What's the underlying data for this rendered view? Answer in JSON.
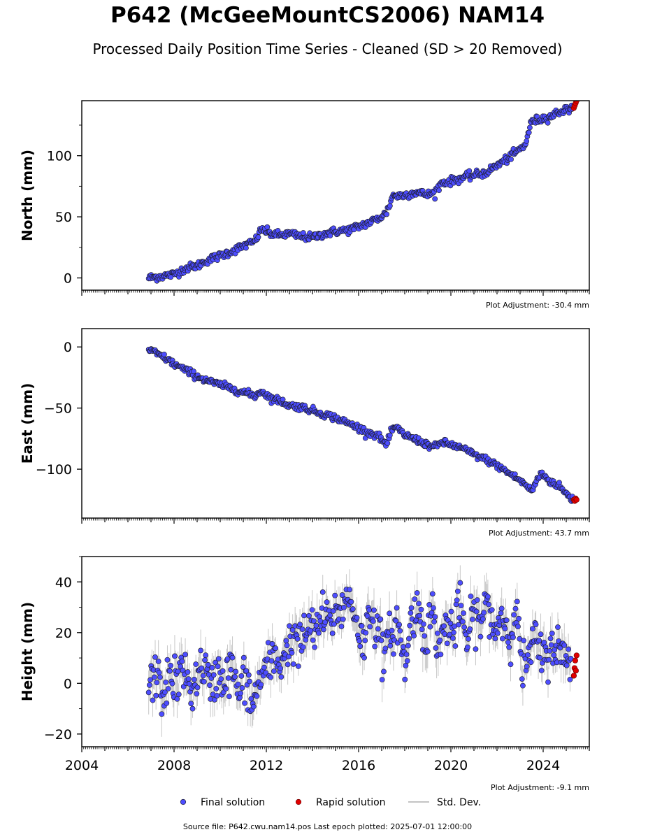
{
  "title": "P642 (McGeeMountCS2006) NAM14",
  "subtitle": "Processed Daily Position Time Series - Cleaned (SD > 20 Removed)",
  "source_text": "Source file: P642.cwu.nam14.pos  Last epoch plotted: 2025-07-01 12:00:00",
  "legend": {
    "final_label": "Final solution",
    "rapid_label": "Rapid solution",
    "sd_label": "Std. Dev."
  },
  "colors": {
    "final": "#4d4dff",
    "rapid": "#e00000",
    "marker_edge": "#1a1a1a",
    "std_dev": "#b0b0b0",
    "axis": "#000000"
  },
  "chart_data": [
    {
      "type": "scatter",
      "ylabel": "North (mm)",
      "xlabel": "",
      "xlim": [
        2004,
        2026
      ],
      "ylim": [
        -10,
        145
      ],
      "yticks": [
        0,
        50,
        100
      ],
      "ytick_labels": [
        "0",
        "50",
        "100"
      ],
      "adjustment": "Plot Adjustment: -30.4 mm",
      "series": [
        {
          "name": "Final solution",
          "x": [
            2006.9,
            2007.3,
            2007.7,
            2008.0,
            2008.5,
            2009.0,
            2009.5,
            2010.0,
            2010.5,
            2011.0,
            2011.5,
            2011.8,
            2012.2,
            2012.6,
            2013.0,
            2013.5,
            2014.0,
            2014.5,
            2015.0,
            2015.5,
            2016.0,
            2016.4,
            2016.8,
            2017.2,
            2017.5,
            2017.7,
            2018.0,
            2018.5,
            2019.0,
            2019.3,
            2019.6,
            2020.0,
            2020.5,
            2021.0,
            2021.5,
            2022.0,
            2022.5,
            2022.9,
            2023.2,
            2023.5,
            2023.9,
            2024.3,
            2024.7,
            2025.1,
            2025.3
          ],
          "y": [
            0,
            1,
            2,
            3,
            8,
            10,
            15,
            18,
            22,
            26,
            30,
            40,
            36,
            35,
            36,
            34,
            33,
            36,
            38,
            39,
            42,
            45,
            48,
            53,
            68,
            67,
            68,
            70,
            68,
            70,
            78,
            79,
            82,
            84,
            86,
            92,
            98,
            104,
            108,
            128,
            130,
            132,
            136,
            138,
            140
          ]
        },
        {
          "name": "Rapid solution",
          "x": [
            2025.33,
            2025.37,
            2025.41,
            2025.45
          ],
          "y": [
            139,
            141,
            143,
            145
          ]
        }
      ]
    },
    {
      "type": "scatter",
      "ylabel": "East (mm)",
      "xlabel": "",
      "xlim": [
        2004,
        2026
      ],
      "ylim": [
        -140,
        15
      ],
      "yticks": [
        0,
        -50,
        -100
      ],
      "ytick_labels": [
        "0",
        "−50",
        "−100"
      ],
      "adjustment": "Plot Adjustment: 43.7 mm",
      "series": [
        {
          "name": "Final solution",
          "x": [
            2006.9,
            2007.3,
            2007.7,
            2008.0,
            2008.5,
            2009.0,
            2009.5,
            2010.0,
            2010.5,
            2011.0,
            2011.5,
            2011.8,
            2012.2,
            2012.6,
            2013.0,
            2013.5,
            2014.0,
            2014.5,
            2015.0,
            2015.5,
            2016.0,
            2016.4,
            2016.8,
            2017.2,
            2017.5,
            2017.7,
            2018.0,
            2018.5,
            2019.0,
            2019.3,
            2019.6,
            2020.0,
            2020.5,
            2021.0,
            2021.5,
            2022.0,
            2022.5,
            2022.9,
            2023.2,
            2023.5,
            2023.9,
            2024.3,
            2024.7,
            2025.1,
            2025.3
          ],
          "y": [
            -2,
            -6,
            -10,
            -14,
            -19,
            -24,
            -28,
            -31,
            -34,
            -37,
            -40,
            -36,
            -42,
            -44,
            -48,
            -49,
            -52,
            -55,
            -58,
            -62,
            -66,
            -70,
            -72,
            -80,
            -66,
            -67,
            -72,
            -76,
            -80,
            -82,
            -78,
            -80,
            -83,
            -88,
            -92,
            -97,
            -103,
            -108,
            -112,
            -118,
            -103,
            -110,
            -114,
            -122,
            -125
          ]
        },
        {
          "name": "Rapid solution",
          "x": [
            2025.33,
            2025.37,
            2025.41,
            2025.45
          ],
          "y": [
            -125,
            -126,
            -124,
            -125
          ]
        }
      ]
    },
    {
      "type": "scatter",
      "ylabel": "Height (mm)",
      "xlabel": "",
      "xlim": [
        2004,
        2026
      ],
      "ylim": [
        -25,
        50
      ],
      "yticks": [
        -20,
        0,
        20,
        40
      ],
      "ytick_labels": [
        "−20",
        "0",
        "20",
        "40"
      ],
      "xticks": [
        2004,
        2008,
        2012,
        2016,
        2020,
        2024
      ],
      "xtick_labels": [
        "2004",
        "2008",
        "2012",
        "2016",
        "2020",
        "2024"
      ],
      "adjustment": "Plot Adjustment: -9.1 mm",
      "series": [
        {
          "name": "Final solution",
          "x": [
            2006.9,
            2007.2,
            2007.5,
            2007.8,
            2008.1,
            2008.4,
            2008.7,
            2009.0,
            2009.3,
            2009.6,
            2009.9,
            2010.2,
            2010.5,
            2010.8,
            2011.1,
            2011.4,
            2011.7,
            2012.0,
            2012.3,
            2012.6,
            2012.9,
            2013.2,
            2013.5,
            2013.8,
            2014.1,
            2014.4,
            2014.7,
            2015.0,
            2015.3,
            2015.6,
            2015.9,
            2016.2,
            2016.5,
            2016.8,
            2017.1,
            2017.4,
            2017.7,
            2018.0,
            2018.3,
            2018.6,
            2018.9,
            2019.2,
            2019.5,
            2019.8,
            2020.1,
            2020.4,
            2020.7,
            2021.0,
            2021.3,
            2021.6,
            2021.9,
            2022.2,
            2022.5,
            2022.8,
            2023.1,
            2023.4,
            2023.7,
            2024.0,
            2024.3,
            2024.6,
            2024.9,
            2025.2
          ],
          "y": [
            -2,
            4,
            -5,
            3,
            0,
            6,
            -3,
            2,
            8,
            -4,
            5,
            1,
            7,
            -5,
            3,
            -10,
            2,
            5,
            10,
            8,
            14,
            18,
            15,
            22,
            20,
            26,
            24,
            28,
            30,
            34,
            26,
            14,
            30,
            22,
            10,
            20,
            24,
            6,
            26,
            30,
            18,
            28,
            14,
            24,
            20,
            30,
            16,
            28,
            24,
            32,
            20,
            28,
            18,
            30,
            6,
            10,
            18,
            8,
            14,
            16,
            8,
            12
          ]
        },
        {
          "name": "Rapid solution",
          "x": [
            2025.33,
            2025.36,
            2025.39,
            2025.42,
            2025.45
          ],
          "y": [
            3,
            6,
            9,
            5,
            11
          ]
        }
      ]
    }
  ]
}
